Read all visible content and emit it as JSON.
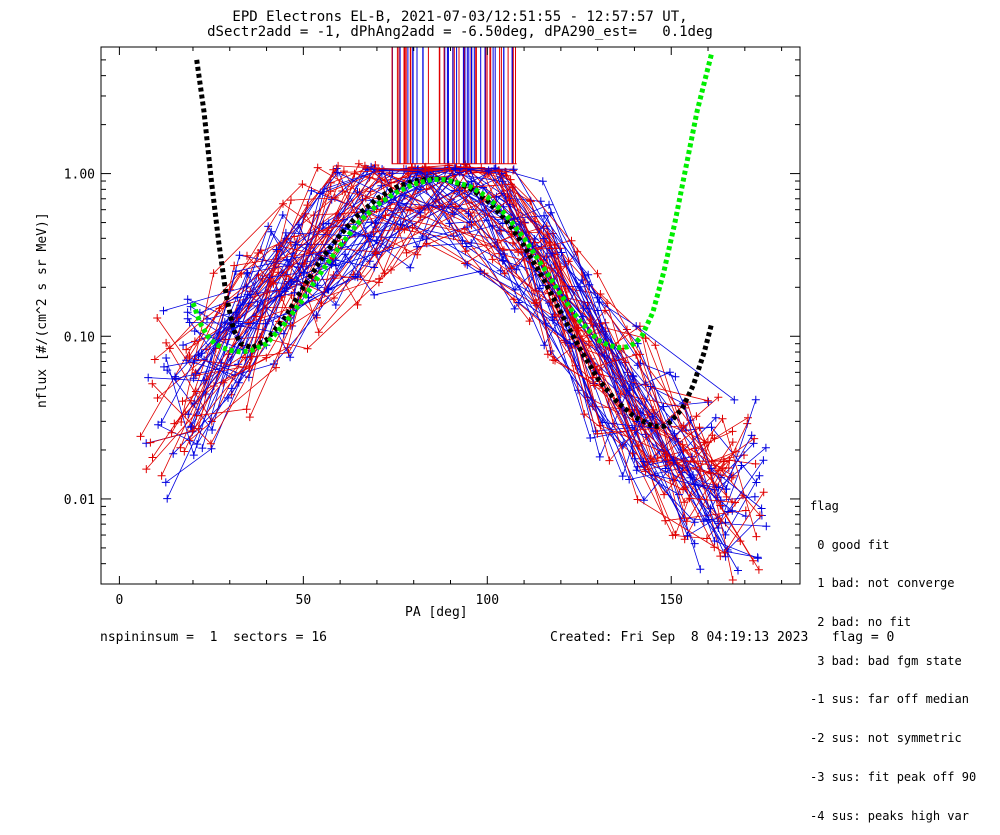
{
  "title_line1": "EPD Electrons EL-B, 2021-07-03/12:51:55 - 12:57:57 UT,",
  "title_line2": "dSectr2add = -1, dPhAng2add = -6.50deg, dPA290_est=   0.1deg",
  "footer_left": "nspininsum =  1  sectors = 16",
  "footer_right": "Created: Fri Sep  8 04:19:13 2023   flag = 0",
  "flag_legend": {
    "title": "flag",
    "items": [
      " 0 good fit",
      " 1 bad: not converge",
      " 2 bad: no fit",
      " 3 bad: bad fgm state",
      "-1 sus: far off median",
      "-2 sus: not symmetric",
      "-3 sus: fit peak off 90",
      "-4 sus: peaks high var"
    ]
  },
  "chart_data": {
    "type": "line",
    "title": "EPD Electrons EL-B, 2021-07-03/12:51:55 - 12:57:57 UT,",
    "subtitle": "dSectr2add = -1, dPhAng2add = -6.50deg, dPA290_est=   0.1deg",
    "xlabel": "PA [deg]",
    "ylabel": "nflux [#/(cm^2 s sr MeV)]",
    "xlim": [
      -5,
      185
    ],
    "ylim": [
      0.003,
      6.0
    ],
    "yscale": "log",
    "x_ticks": [
      0,
      50,
      100,
      150
    ],
    "x_tick_labels": [
      "0",
      "50",
      "100",
      "150"
    ],
    "y_ticks": [
      0.01,
      0.1,
      1.0
    ],
    "y_tick_labels": [
      "0.01",
      "0.10",
      "1.00"
    ],
    "colors": {
      "red_series": "#e00000",
      "blue_series": "#0000e0",
      "fit_black": "#000000",
      "fit_green": "#00ee00"
    },
    "spectra_profile": {
      "x": [
        10,
        20,
        30,
        40,
        50,
        60,
        70,
        80,
        85,
        90,
        95,
        100,
        110,
        120,
        130,
        140,
        150,
        160,
        170
      ],
      "y": [
        0.035,
        0.055,
        0.09,
        0.16,
        0.28,
        0.45,
        0.65,
        0.85,
        0.92,
        0.9,
        0.85,
        0.7,
        0.38,
        0.17,
        0.07,
        0.035,
        0.018,
        0.012,
        0.01
      ]
    },
    "fit_curves": [
      {
        "color": "black",
        "x": [
          21,
          23,
          25,
          27,
          29,
          31,
          33,
          36,
          40,
          45,
          50,
          55,
          60,
          65,
          70,
          75,
          80,
          85,
          88,
          90,
          95,
          100,
          105,
          110,
          115,
          120,
          125,
          130,
          135,
          140,
          145,
          148,
          150,
          153,
          156,
          159,
          161
        ],
        "y": [
          5.0,
          2.4,
          0.9,
          0.38,
          0.18,
          0.11,
          0.09,
          0.085,
          0.095,
          0.13,
          0.2,
          0.3,
          0.42,
          0.56,
          0.7,
          0.82,
          0.9,
          0.93,
          0.92,
          0.9,
          0.82,
          0.68,
          0.52,
          0.36,
          0.23,
          0.14,
          0.085,
          0.055,
          0.04,
          0.032,
          0.028,
          0.028,
          0.03,
          0.036,
          0.05,
          0.08,
          0.12
        ]
      },
      {
        "color": "green",
        "x": [
          20,
          22,
          24,
          26,
          28,
          30,
          33,
          36,
          40,
          45,
          50,
          55,
          60,
          65,
          70,
          75,
          80,
          85,
          88,
          90,
          95,
          100,
          105,
          110,
          115,
          120,
          125,
          130,
          133,
          136,
          138,
          140,
          142,
          145,
          148,
          151,
          154,
          157,
          161
        ],
        "y": [
          0.16,
          0.12,
          0.1,
          0.09,
          0.085,
          0.082,
          0.08,
          0.082,
          0.09,
          0.12,
          0.17,
          0.25,
          0.36,
          0.5,
          0.64,
          0.76,
          0.86,
          0.92,
          0.92,
          0.9,
          0.84,
          0.72,
          0.56,
          0.4,
          0.27,
          0.18,
          0.125,
          0.095,
          0.088,
          0.085,
          0.086,
          0.09,
          0.1,
          0.14,
          0.25,
          0.5,
          1.1,
          2.4,
          5.5
        ]
      }
    ],
    "vertical_lines": {
      "x_range": [
        74,
        108
      ],
      "y_range": [
        1.15,
        6.0
      ]
    }
  }
}
